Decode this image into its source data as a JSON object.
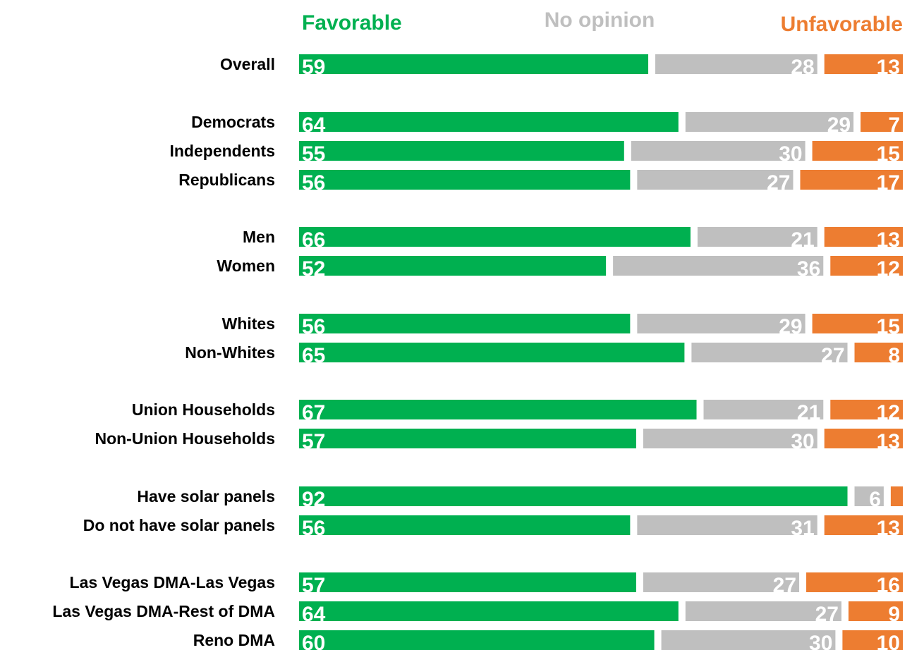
{
  "chart_data": {
    "type": "bar",
    "stacked": true,
    "orientation": "horizontal",
    "xlim": [
      0,
      100
    ],
    "categories": [
      "Overall",
      "Democrats",
      "Independents",
      "Republicans",
      "Men",
      "Women",
      "Whites",
      "Non-Whites",
      "Union Households",
      "Non-Union Households",
      "Have solar panels",
      "Do not have solar panels",
      "Las Vegas DMA-Las Vegas",
      "Las Vegas DMA-Rest of DMA",
      "Reno DMA"
    ],
    "series": [
      {
        "name": "Favorable",
        "color": "#00b050",
        "values": [
          59,
          64,
          55,
          56,
          66,
          52,
          56,
          65,
          67,
          57,
          92,
          56,
          57,
          64,
          60
        ]
      },
      {
        "name": "No opinion",
        "color": "#bfbfbf",
        "values": [
          28,
          29,
          30,
          27,
          21,
          36,
          29,
          27,
          21,
          30,
          6,
          31,
          27,
          27,
          30
        ]
      },
      {
        "name": "Unfavorable",
        "color": "#ed7d31",
        "values": [
          13,
          7,
          15,
          17,
          13,
          12,
          15,
          8,
          12,
          13,
          2,
          13,
          16,
          9,
          10
        ]
      }
    ],
    "value_labels": [
      [
        "59",
        "64",
        "55",
        "56",
        "66",
        "52",
        "56",
        "65",
        "67",
        "57",
        "92",
        "56",
        "57",
        "64",
        "60"
      ],
      [
        "28",
        "29",
        "30",
        "27",
        "21",
        "36",
        "29",
        "27",
        "21",
        "30",
        "6",
        "31",
        "27",
        "27",
        "30"
      ],
      [
        "13",
        "7",
        "15",
        "17",
        "13",
        "12",
        "15",
        "8",
        "12",
        "13",
        "",
        "13",
        "16",
        "9",
        "10"
      ]
    ],
    "legend": {
      "placement": "top",
      "entries": [
        "Favorable",
        "No opinion",
        "Unfavorable"
      ]
    },
    "grid": false
  }
}
